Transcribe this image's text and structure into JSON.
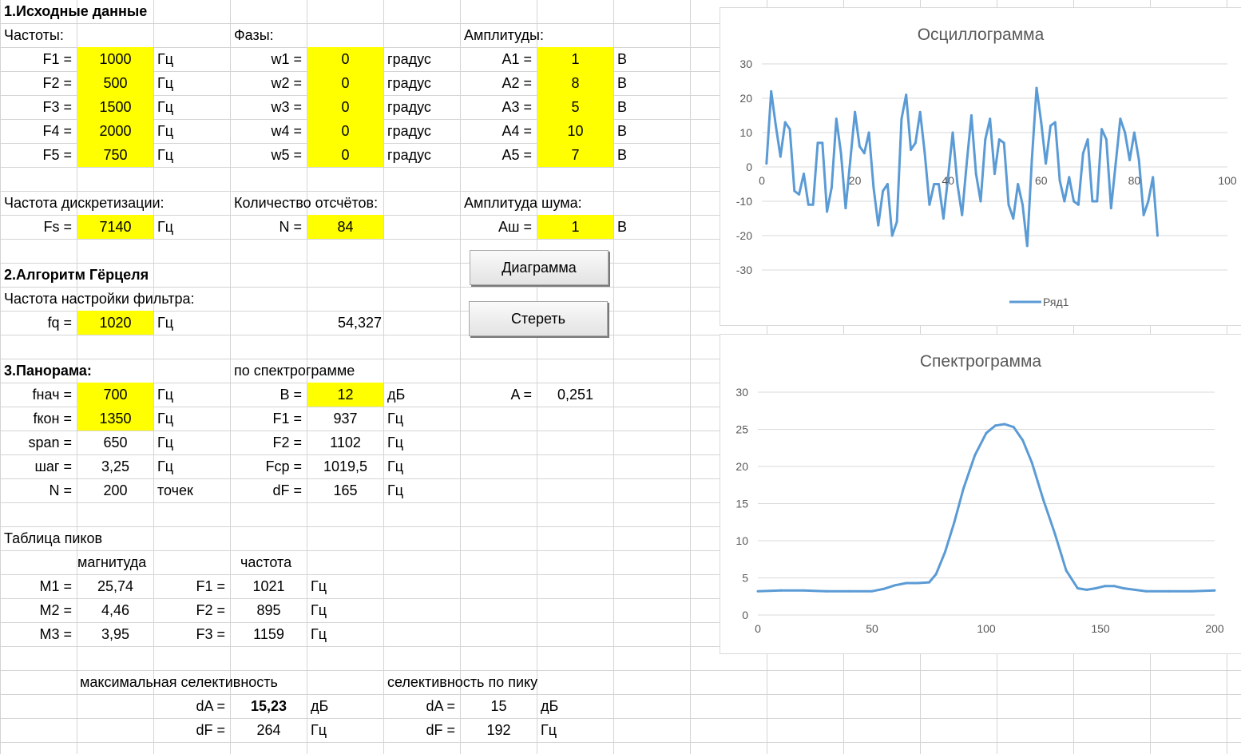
{
  "section1": {
    "title": "1.Исходные данные",
    "freq_header": "Частоты:",
    "phase_header": "Фазы:",
    "amp_header": "Амплитуды:",
    "rows": [
      {
        "f_label": "F1 =",
        "f_val": "1000",
        "f_unit": "Гц",
        "w_label": "w1 =",
        "w_val": "0",
        "w_unit": "градус",
        "a_label": "A1 =",
        "a_val": "1",
        "a_unit": "В"
      },
      {
        "f_label": "F2 =",
        "f_val": "500",
        "f_unit": "Гц",
        "w_label": "w2 =",
        "w_val": "0",
        "w_unit": "градус",
        "a_label": "A2 =",
        "a_val": "8",
        "a_unit": "В"
      },
      {
        "f_label": "F3 =",
        "f_val": "1500",
        "f_unit": "Гц",
        "w_label": "w3 =",
        "w_val": "0",
        "w_unit": "градус",
        "a_label": "A3 =",
        "a_val": "5",
        "a_unit": "В"
      },
      {
        "f_label": "F4 =",
        "f_val": "2000",
        "f_unit": "Гц",
        "w_label": "w4 =",
        "w_val": "0",
        "w_unit": "градус",
        "a_label": "A4 =",
        "a_val": "10",
        "a_unit": "В"
      },
      {
        "f_label": "F5 =",
        "f_val": "750",
        "f_unit": "Гц",
        "w_label": "w5 =",
        "w_val": "0",
        "w_unit": "градус",
        "a_label": "A5 =",
        "a_val": "7",
        "a_unit": "В"
      }
    ],
    "fs_header": "Частота дискретизации:",
    "fs_label": "Fs =",
    "fs_val": "7140",
    "fs_unit": "Гц",
    "n_header": "Количество отсчётов:",
    "n_label": "N =",
    "n_val": "84",
    "noise_header": "Амплитуда шума:",
    "noise_label": "Aш =",
    "noise_val": "1",
    "noise_unit": "В"
  },
  "buttons": {
    "diagram": "Диаграмма",
    "erase": "Стереть"
  },
  "section2": {
    "title": "2.Алгоритм Гёрцеля",
    "filter_header": "Частота настройки фильтра:",
    "fq_label": "fq =",
    "fq_val": "1020",
    "fq_unit": "Гц",
    "result": "54,327"
  },
  "section3": {
    "title": "3.Панорама:",
    "spectro_header": "по спектрограмме",
    "fstart_label": "fнач =",
    "fstart_val": "700",
    "fstart_unit": "Гц",
    "fend_label": "fкон =",
    "fend_val": "1350",
    "fend_unit": "Гц",
    "span_label": "span =",
    "span_val": "650",
    "span_unit": "Гц",
    "step_label": "шаг =",
    "step_val": "3,25",
    "step_unit": "Гц",
    "n_label": "N =",
    "n_val": "200",
    "n_unit": "точек",
    "b_label": "B =",
    "b_val": "12",
    "b_unit": "дБ",
    "f1_label": "F1 =",
    "f1_val": "937",
    "f1_unit": "Гц",
    "f2_label": "F2 =",
    "f2_val": "1102",
    "f2_unit": "Гц",
    "fcp_label": "Fcp =",
    "fcp_val": "1019,5",
    "fcp_unit": "Гц",
    "df_label": "dF =",
    "df_val": "165",
    "df_unit": "Гц",
    "a_label": "A =",
    "a_val": "0,251"
  },
  "peaks": {
    "title": "Таблица пиков",
    "mag_header": "магнитуда",
    "freq_header": "частота",
    "rows": [
      {
        "m_label": "M1 =",
        "m_val": "25,74",
        "f_label": "F1 =",
        "f_val": "1021",
        "unit": "Гц"
      },
      {
        "m_label": "M2 =",
        "m_val": "4,46",
        "f_label": "F2 =",
        "f_val": "895",
        "unit": "Гц"
      },
      {
        "m_label": "M3 =",
        "m_val": "3,95",
        "f_label": "F3 =",
        "f_val": "1159",
        "unit": "Гц"
      }
    ]
  },
  "selectivity": {
    "max_header": "максимальная селективность",
    "peak_header": "селективность по пику",
    "max_da_label": "dA =",
    "max_da_val": "15,23",
    "max_da_unit": "дБ",
    "max_df_label": "dF =",
    "max_df_val": "264",
    "max_df_unit": "Гц",
    "peak_da_label": "dA =",
    "peak_da_val": "15",
    "peak_da_unit": "дБ",
    "peak_df_label": "dF =",
    "peak_df_val": "192",
    "peak_df_unit": "Гц"
  },
  "colors": {
    "input_fill": "#ffff00",
    "series": "#5b9bd5",
    "grid": "#d9d9d9"
  },
  "chart_data": [
    {
      "type": "line",
      "title": "Осциллограмма",
      "legend_position": "bottom",
      "xlim": [
        0,
        100
      ],
      "ylim": [
        -30,
        30
      ],
      "x_ticks": [
        0,
        20,
        40,
        60,
        80,
        100
      ],
      "x_tick_labels": [
        "0",
        "20",
        "40",
        "60",
        "80",
        "100"
      ],
      "y_ticks": [
        -30,
        -20,
        -10,
        0,
        10,
        20,
        30
      ],
      "grid": true,
      "series": [
        {
          "name": "Ряд1",
          "values": [
            1,
            22,
            12,
            3,
            13,
            11,
            -7,
            -8,
            -2,
            -11,
            -11,
            7,
            7,
            -13,
            -6,
            14,
            4,
            -12,
            2,
            16,
            6,
            4,
            10,
            -6,
            -17,
            -7,
            -5,
            -20,
            -16,
            14,
            21,
            5,
            7,
            16,
            4,
            -11,
            -5,
            -5,
            -15,
            -3,
            10,
            -5,
            -14,
            1,
            15,
            -2,
            -10,
            8,
            14,
            -2,
            8,
            7,
            -11,
            -15,
            -5,
            -11,
            -23,
            2,
            23,
            13,
            1,
            12,
            13,
            -4,
            -10,
            -3,
            -10,
            -11,
            4,
            8,
            -10,
            -10,
            11,
            8,
            -12,
            1,
            14,
            10,
            2,
            10,
            2,
            -14,
            -10,
            -3,
            -20
          ]
        }
      ]
    },
    {
      "type": "line",
      "title": "Спектрограмма",
      "xlim": [
        0,
        200
      ],
      "ylim": [
        0,
        30
      ],
      "x_ticks": [
        0,
        50,
        100,
        150,
        200
      ],
      "y_ticks": [
        0,
        5,
        10,
        15,
        20,
        25,
        30
      ],
      "grid": true,
      "series": [
        {
          "x": [
            0,
            10,
            20,
            30,
            40,
            50,
            55,
            60,
            65,
            70,
            75,
            78,
            82,
            86,
            90,
            95,
            100,
            104,
            108,
            112,
            116,
            120,
            125,
            130,
            135,
            140,
            144,
            148,
            152,
            156,
            160,
            170,
            180,
            190,
            200
          ],
          "values": [
            3.2,
            3.3,
            3.3,
            3.2,
            3.2,
            3.2,
            3.5,
            4.0,
            4.3,
            4.3,
            4.4,
            5.5,
            8.5,
            12.5,
            17.0,
            21.5,
            24.5,
            25.5,
            25.7,
            25.3,
            23.5,
            20.5,
            15.5,
            11.0,
            6.0,
            3.6,
            3.4,
            3.6,
            3.9,
            3.9,
            3.6,
            3.2,
            3.2,
            3.2,
            3.3
          ]
        }
      ]
    }
  ]
}
